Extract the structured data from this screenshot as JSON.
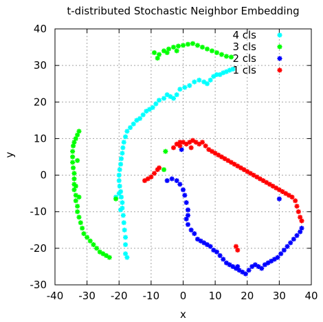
{
  "chart_data": {
    "type": "scatter",
    "title": "t-distributed Stochastic Neighbor Embedding",
    "xlabel": "x",
    "ylabel": "y",
    "xlim": [
      -40,
      40
    ],
    "ylim": [
      -30,
      40
    ],
    "xticks": [
      -40,
      -30,
      -20,
      -10,
      0,
      10,
      20,
      30,
      40
    ],
    "yticks": [
      -30,
      -20,
      -10,
      0,
      10,
      20,
      30,
      40
    ],
    "grid": true,
    "legend_position": "top-right",
    "series": [
      {
        "name": "4 cls",
        "color": "#00ffff",
        "points": [
          [
            -17.5,
            -22.5
          ],
          [
            -18.0,
            -21.5
          ],
          [
            -18.0,
            -19.0
          ],
          [
            -18.0,
            -17.0
          ],
          [
            -18.3,
            -15.0
          ],
          [
            -18.5,
            -13.0
          ],
          [
            -18.7,
            -11.0
          ],
          [
            -19.0,
            -9.0
          ],
          [
            -19.0,
            -7.5
          ],
          [
            -19.3,
            -6.0
          ],
          [
            -19.5,
            -4.5
          ],
          [
            -19.8,
            -3.0
          ],
          [
            -20.0,
            -1.5
          ],
          [
            -20.0,
            0.0
          ],
          [
            -19.8,
            1.5
          ],
          [
            -19.5,
            3.0
          ],
          [
            -19.3,
            4.5
          ],
          [
            -19.0,
            6.0
          ],
          [
            -18.8,
            7.5
          ],
          [
            -18.5,
            9.0
          ],
          [
            -18.0,
            10.5
          ],
          [
            -17.5,
            12.0
          ],
          [
            -16.5,
            13.0
          ],
          [
            -15.5,
            14.0
          ],
          [
            -14.5,
            15.0
          ],
          [
            -13.5,
            15.5
          ],
          [
            -12.5,
            16.5
          ],
          [
            -11.5,
            17.5
          ],
          [
            -10.5,
            18.0
          ],
          [
            -9.5,
            18.5
          ],
          [
            -8.5,
            19.5
          ],
          [
            -7.5,
            20.5
          ],
          [
            -6.0,
            21.0
          ],
          [
            -5.0,
            22.0
          ],
          [
            -4.0,
            21.5
          ],
          [
            -3.0,
            21.0
          ],
          [
            -2.0,
            22.0
          ],
          [
            -1.0,
            23.5
          ],
          [
            0.5,
            24.0
          ],
          [
            2.0,
            24.5
          ],
          [
            3.5,
            25.5
          ],
          [
            5.0,
            26.0
          ],
          [
            6.5,
            25.5
          ],
          [
            7.5,
            25.0
          ],
          [
            8.5,
            26.0
          ],
          [
            9.5,
            27.0
          ],
          [
            10.5,
            27.5
          ],
          [
            11.5,
            27.5
          ],
          [
            12.5,
            28.0
          ],
          [
            13.5,
            28.3
          ],
          [
            14.5,
            28.7
          ],
          [
            15.5,
            29.0
          ],
          [
            -20.0,
            -5.0
          ],
          [
            -19.5,
            -9.5
          ],
          [
            -21.0,
            -6.0
          ]
        ]
      },
      {
        "name": "3 cls",
        "color": "#00ff00",
        "points": [
          [
            -23.0,
            -22.5
          ],
          [
            -24.0,
            -22.0
          ],
          [
            -25.0,
            -21.5
          ],
          [
            -26.0,
            -21.0
          ],
          [
            -27.0,
            -20.0
          ],
          [
            -28.0,
            -19.0
          ],
          [
            -29.0,
            -18.0
          ],
          [
            -30.0,
            -17.0
          ],
          [
            -31.0,
            -16.0
          ],
          [
            -31.5,
            -14.5
          ],
          [
            -32.0,
            -13.0
          ],
          [
            -32.5,
            -11.5
          ],
          [
            -33.0,
            -10.0
          ],
          [
            -33.0,
            -8.5
          ],
          [
            -33.5,
            -7.0
          ],
          [
            -33.5,
            -5.5
          ],
          [
            -34.0,
            -4.0
          ],
          [
            -34.0,
            -2.5
          ],
          [
            -34.0,
            -1.0
          ],
          [
            -34.0,
            0.5
          ],
          [
            -34.3,
            2.0
          ],
          [
            -34.5,
            3.5
          ],
          [
            -34.5,
            5.0
          ],
          [
            -34.5,
            6.5
          ],
          [
            -34.3,
            8.0
          ],
          [
            -34.0,
            9.0
          ],
          [
            -33.5,
            10.0
          ],
          [
            -33.0,
            11.0
          ],
          [
            -32.5,
            12.0
          ],
          [
            -33.5,
            -3.0
          ],
          [
            -32.5,
            -6.0
          ],
          [
            -33.0,
            4.0
          ],
          [
            -21.0,
            -6.5
          ],
          [
            -6.0,
            1.5
          ],
          [
            -5.5,
            6.5
          ],
          [
            -9.0,
            33.5
          ],
          [
            -7.5,
            33.0
          ],
          [
            -6.0,
            34.0
          ],
          [
            -4.5,
            34.5
          ],
          [
            -3.0,
            35.0
          ],
          [
            -1.5,
            35.3
          ],
          [
            0.0,
            35.5
          ],
          [
            1.5,
            35.8
          ],
          [
            3.0,
            36.0
          ],
          [
            4.5,
            35.5
          ],
          [
            6.0,
            35.0
          ],
          [
            7.5,
            34.5
          ],
          [
            9.0,
            34.0
          ],
          [
            10.5,
            33.5
          ],
          [
            12.0,
            33.0
          ],
          [
            13.5,
            32.5
          ],
          [
            15.0,
            32.3
          ],
          [
            -5.0,
            33.5
          ],
          [
            -2.0,
            34.0
          ],
          [
            -8.0,
            32.0
          ]
        ]
      },
      {
        "name": "2 cls",
        "color": "#0000ff",
        "points": [
          [
            -5.0,
            -1.5
          ],
          [
            -3.5,
            -1.0
          ],
          [
            -2.0,
            -1.5
          ],
          [
            -1.0,
            -2.5
          ],
          [
            0.0,
            -4.0
          ],
          [
            0.5,
            -5.5
          ],
          [
            1.0,
            -7.5
          ],
          [
            1.5,
            -9.5
          ],
          [
            1.5,
            -11.0
          ],
          [
            1.0,
            -12.0
          ],
          [
            1.5,
            -13.5
          ],
          [
            2.5,
            -15.0
          ],
          [
            3.5,
            -16.0
          ],
          [
            4.5,
            -17.5
          ],
          [
            5.5,
            -18.0
          ],
          [
            6.5,
            -18.5
          ],
          [
            7.5,
            -19.0
          ],
          [
            8.5,
            -19.5
          ],
          [
            9.5,
            -20.5
          ],
          [
            10.5,
            -21.0
          ],
          [
            11.5,
            -22.0
          ],
          [
            12.5,
            -23.0
          ],
          [
            13.5,
            -24.0
          ],
          [
            14.5,
            -24.5
          ],
          [
            15.5,
            -25.0
          ],
          [
            16.5,
            -25.5
          ],
          [
            17.5,
            -26.0
          ],
          [
            18.5,
            -26.5
          ],
          [
            19.5,
            -27.0
          ],
          [
            20.5,
            -26.0
          ],
          [
            21.5,
            -25.0
          ],
          [
            22.5,
            -24.5
          ],
          [
            23.5,
            -25.0
          ],
          [
            24.5,
            -25.5
          ],
          [
            25.5,
            -24.5
          ],
          [
            26.5,
            -24.0
          ],
          [
            27.5,
            -23.5
          ],
          [
            28.5,
            -23.0
          ],
          [
            29.5,
            -22.5
          ],
          [
            30.5,
            -21.5
          ],
          [
            31.5,
            -20.5
          ],
          [
            32.5,
            -19.5
          ],
          [
            33.5,
            -18.5
          ],
          [
            34.5,
            -17.5
          ],
          [
            35.5,
            -16.5
          ],
          [
            36.5,
            -15.5
          ],
          [
            37.0,
            -14.5
          ],
          [
            -0.5,
            7.0
          ],
          [
            30.0,
            -6.5
          ],
          [
            17.0,
            -25.0
          ]
        ]
      },
      {
        "name": "1 cls",
        "color": "#ff0000",
        "points": [
          [
            -12.0,
            -1.5
          ],
          [
            -11.0,
            -1.0
          ],
          [
            -10.0,
            -0.5
          ],
          [
            -9.0,
            0.5
          ],
          [
            -8.0,
            1.5
          ],
          [
            -7.5,
            2.0
          ],
          [
            -3.0,
            7.5
          ],
          [
            -2.0,
            8.5
          ],
          [
            -1.0,
            9.0
          ],
          [
            0.0,
            9.0
          ],
          [
            1.0,
            8.5
          ],
          [
            2.0,
            9.0
          ],
          [
            3.0,
            9.5
          ],
          [
            4.0,
            9.0
          ],
          [
            5.0,
            8.5
          ],
          [
            6.0,
            9.0
          ],
          [
            7.0,
            8.0
          ],
          [
            8.0,
            7.0
          ],
          [
            9.0,
            6.5
          ],
          [
            10.0,
            6.0
          ],
          [
            11.0,
            5.5
          ],
          [
            12.0,
            5.0
          ],
          [
            13.0,
            4.5
          ],
          [
            14.0,
            4.0
          ],
          [
            15.0,
            3.5
          ],
          [
            16.0,
            3.0
          ],
          [
            17.0,
            2.5
          ],
          [
            18.0,
            2.0
          ],
          [
            19.0,
            1.5
          ],
          [
            20.0,
            1.0
          ],
          [
            21.0,
            0.5
          ],
          [
            22.0,
            0.0
          ],
          [
            23.0,
            -0.5
          ],
          [
            24.0,
            -1.0
          ],
          [
            25.0,
            -1.5
          ],
          [
            26.0,
            -2.0
          ],
          [
            27.0,
            -2.5
          ],
          [
            28.0,
            -3.0
          ],
          [
            29.0,
            -3.5
          ],
          [
            30.0,
            -4.0
          ],
          [
            31.0,
            -4.5
          ],
          [
            32.0,
            -5.0
          ],
          [
            33.0,
            -5.5
          ],
          [
            34.0,
            -6.0
          ],
          [
            35.0,
            -7.0
          ],
          [
            35.5,
            -8.5
          ],
          [
            36.0,
            -10.0
          ],
          [
            36.5,
            -11.5
          ],
          [
            37.0,
            -12.5
          ],
          [
            16.5,
            -19.5
          ],
          [
            17.0,
            -20.5
          ],
          [
            -1.0,
            8.0
          ],
          [
            2.5,
            7.5
          ]
        ]
      }
    ]
  }
}
